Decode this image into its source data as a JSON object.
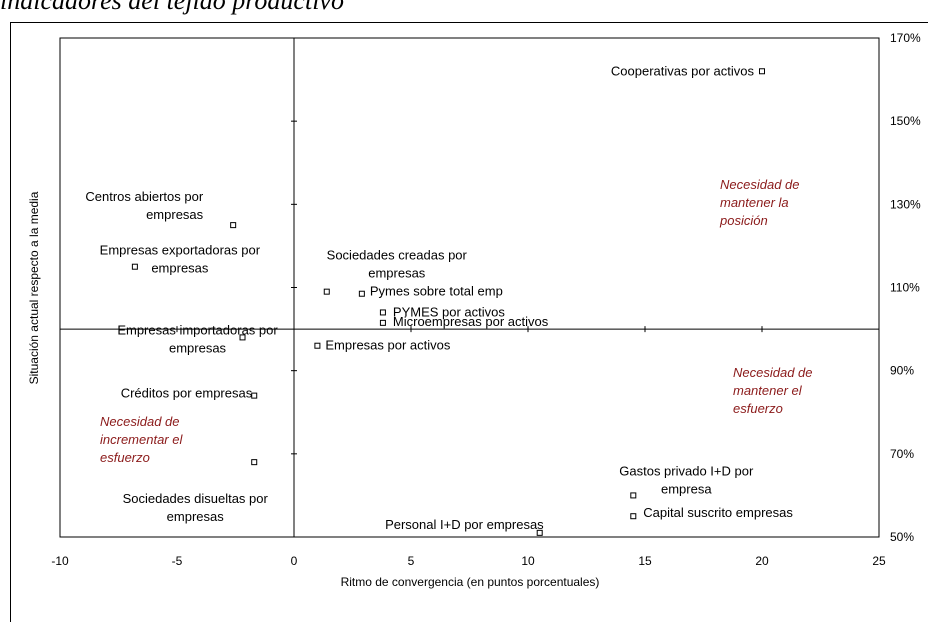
{
  "chart_data": {
    "type": "scatter",
    "title": "indicadores del tejido productivo",
    "xlabel": "Ritmo de convergencia (en puntos porcentuales)",
    "ylabel": "Situación actual respecto a la media",
    "xlim": [
      -10,
      25
    ],
    "ylim": [
      50,
      170
    ],
    "x_ticks": [
      "-10",
      "-5",
      "0",
      "5",
      "10",
      "15",
      "20",
      "25"
    ],
    "y_ticks": [
      "50%",
      "70%",
      "90%",
      "110%",
      "130%",
      "150%",
      "170%"
    ],
    "grid": false,
    "points": [
      {
        "lines": [
          "Cooperativas por activos"
        ],
        "x": 20.0,
        "y": 162
      },
      {
        "lines": [
          "Centros abiertos por",
          "empresas"
        ],
        "x": -2.6,
        "y": 125
      },
      {
        "lines": [
          "Empresas exportadoras por",
          "empresas"
        ],
        "x": -6.8,
        "y": 115
      },
      {
        "lines": [
          "Sociedades creadas por",
          "empresas"
        ],
        "x": 1.4,
        "y": 109
      },
      {
        "lines": [
          "Pymes sobre total emp"
        ],
        "x": 2.9,
        "y": 108.5
      },
      {
        "lines": [
          "PYMES por activos"
        ],
        "x": 3.8,
        "y": 104
      },
      {
        "lines": [
          "Microempresas por activos"
        ],
        "x": 3.8,
        "y": 101.5
      },
      {
        "lines": [
          "Empresas importadoras por",
          "empresas"
        ],
        "x": -2.2,
        "y": 98
      },
      {
        "lines": [
          "Empresas por activos"
        ],
        "x": 1.0,
        "y": 96
      },
      {
        "lines": [
          "Créditos por empresas"
        ],
        "x": -1.7,
        "y": 84
      },
      {
        "lines": [
          "Sociedades disueltas por",
          "empresas"
        ],
        "x": -1.7,
        "y": 68
      },
      {
        "lines": [
          "Gastos privado I+D por",
          "empresa"
        ],
        "x": 14.5,
        "y": 60
      },
      {
        "lines": [
          "Capital suscrito empresas"
        ],
        "x": 14.5,
        "y": 55
      },
      {
        "lines": [
          "Personal I+D por empresas"
        ],
        "x": 10.5,
        "y": 51
      }
    ],
    "annotations": [
      {
        "lines": [
          "Necesidad de",
          "mantener la",
          "posición"
        ]
      },
      {
        "lines": [
          "Necesidad de",
          "mantener el",
          "esfuerzo"
        ]
      },
      {
        "lines": [
          "Necesidad de",
          "incrementar el",
          "esfuerzo"
        ]
      }
    ],
    "reference_lines": {
      "x": 0,
      "y": 100
    },
    "colors": {
      "markers": "#000000",
      "annotations": "#8B1A1A"
    }
  }
}
